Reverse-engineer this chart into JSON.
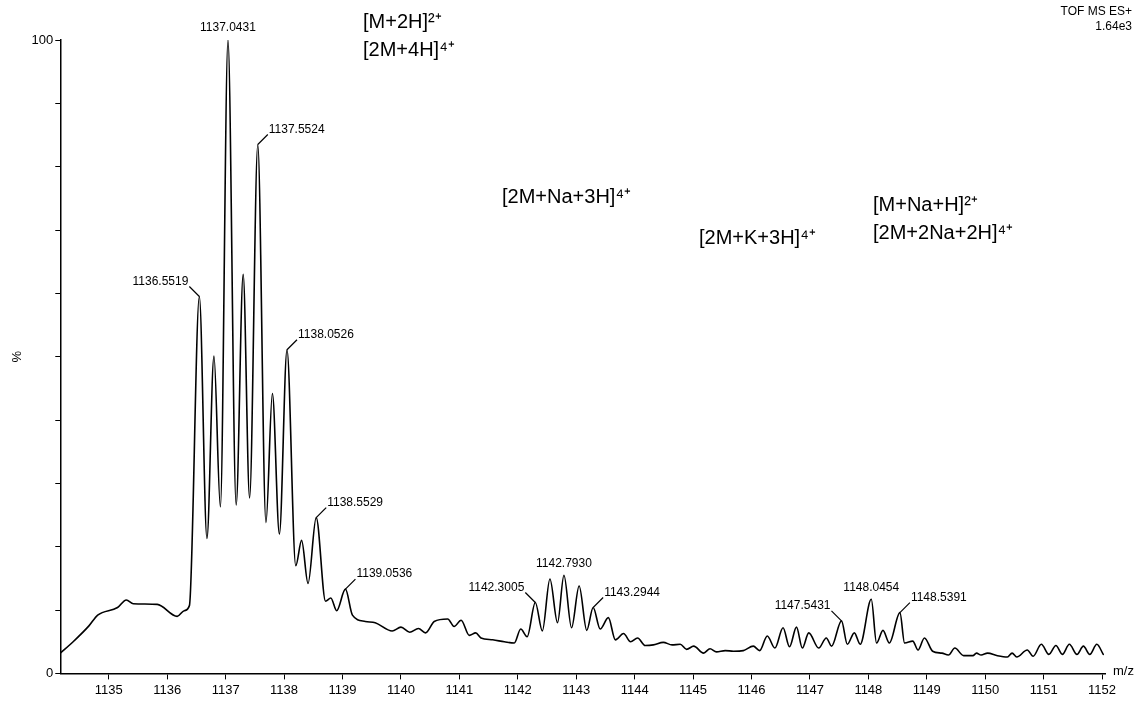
{
  "chart_data": {
    "type": "line",
    "xlabel": "m/z",
    "ylabel": "%",
    "xlim": [
      1134.17,
      1152.05
    ],
    "ylim": [
      0,
      100
    ],
    "xticks": [
      1135,
      1136,
      1137,
      1138,
      1139,
      1140,
      1141,
      1142,
      1143,
      1144,
      1145,
      1146,
      1147,
      1148,
      1149,
      1150,
      1151,
      1152
    ],
    "yticks": [
      0,
      {
        "value": 10,
        "label": null
      },
      {
        "value": 20,
        "label": null
      },
      {
        "value": 30,
        "label": null
      },
      {
        "value": 40,
        "label": null
      },
      {
        "value": 50,
        "label": null
      },
      {
        "value": 60,
        "label": null
      },
      {
        "value": 70,
        "label": null
      },
      {
        "value": 80,
        "label": null
      },
      {
        "value": 90,
        "label": null
      },
      100
    ],
    "grid": false,
    "legend": false,
    "marker": "none",
    "line_style": "solid",
    "series": [
      {
        "color": "#000000",
        "x": [
          1134.17,
          1134.39,
          1134.66,
          1134.81,
          1135.15,
          1135.3,
          1135.42,
          1135.83,
          1136.17,
          1136.29,
          1136.38,
          1136.55,
          1136.68,
          1136.8,
          1136.91,
          1137.04,
          1137.18,
          1137.3,
          1137.41,
          1137.55,
          1137.69,
          1137.8,
          1137.92,
          1138.05,
          1138.2,
          1138.3,
          1138.41,
          1138.55,
          1138.71,
          1138.8,
          1138.9,
          1139.05,
          1139.17,
          1139.39,
          1139.56,
          1139.85,
          1140.0,
          1140.15,
          1140.3,
          1140.42,
          1140.57,
          1140.8,
          1140.91,
          1141.03,
          1141.17,
          1141.28,
          1141.37,
          1141.57,
          1141.77,
          1141.94,
          1142.05,
          1142.16,
          1142.3,
          1142.42,
          1142.55,
          1142.68,
          1142.79,
          1142.92,
          1143.05,
          1143.18,
          1143.29,
          1143.41,
          1143.55,
          1143.67,
          1143.81,
          1143.93,
          1144.05,
          1144.18,
          1144.32,
          1144.49,
          1144.64,
          1144.78,
          1144.89,
          1145.01,
          1145.18,
          1145.29,
          1145.4,
          1145.55,
          1145.69,
          1145.86,
          1146.03,
          1146.14,
          1146.27,
          1146.4,
          1146.54,
          1146.65,
          1146.77,
          1146.87,
          1146.98,
          1147.15,
          1147.28,
          1147.37,
          1147.54,
          1147.64,
          1147.76,
          1147.86,
          1148.05,
          1148.14,
          1148.25,
          1148.36,
          1148.54,
          1148.62,
          1148.76,
          1148.85,
          1148.96,
          1149.1,
          1149.26,
          1149.37,
          1149.48,
          1149.63,
          1149.79,
          1149.85,
          1149.93,
          1150.04,
          1150.21,
          1150.38,
          1150.46,
          1150.54,
          1150.72,
          1150.82,
          1150.96,
          1151.09,
          1151.21,
          1151.32,
          1151.44,
          1151.57,
          1151.68,
          1151.79,
          1151.91,
          1152.02
        ],
        "values": [
          3.2,
          5.0,
          7.5,
          9.2,
          10.4,
          11.6,
          11.0,
          10.9,
          9.0,
          9.9,
          10.7,
          59.5,
          21.3,
          50.1,
          26.3,
          100,
          26.6,
          63.0,
          27.7,
          83.5,
          23.8,
          44.2,
          22.0,
          51.1,
          17.0,
          21.0,
          14.2,
          24.6,
          11.4,
          11.9,
          9.9,
          13.3,
          9.2,
          8.2,
          8.0,
          6.7,
          7.3,
          6.5,
          7.1,
          6.4,
          8.2,
          8.6,
          7.4,
          8.4,
          6.0,
          6.4,
          5.6,
          5.3,
          5.0,
          4.8,
          7.0,
          5.8,
          11.2,
          6.7,
          14.9,
          8.0,
          15.5,
          7.2,
          13.8,
          6.8,
          10.4,
          7.0,
          8.8,
          5.3,
          6.3,
          5.0,
          5.6,
          4.4,
          4.5,
          4.9,
          4.5,
          4.6,
          3.8,
          4.3,
          3.2,
          3.9,
          3.4,
          3.6,
          3.5,
          3.6,
          4.3,
          3.6,
          5.9,
          4.0,
          7.2,
          4.2,
          7.3,
          4.0,
          6.4,
          4.0,
          5.6,
          4.3,
          8.3,
          4.6,
          6.4,
          4.6,
          11.7,
          4.8,
          6.8,
          4.8,
          9.6,
          4.8,
          5.1,
          3.7,
          5.6,
          3.5,
          3.2,
          2.9,
          4.0,
          2.8,
          2.8,
          3.2,
          2.9,
          3.2,
          2.8,
          2.6,
          3.2,
          2.6,
          3.7,
          2.7,
          4.6,
          3.0,
          4.4,
          3.0,
          4.6,
          3.0,
          4.3,
          3.0,
          4.6,
          3.0
        ]
      }
    ],
    "annotations": [
      {
        "text": "1136.5519",
        "x": 1136.55,
        "y": 59.5
      },
      {
        "text": "1137.0431",
        "x": 1137.04,
        "y": 100
      },
      {
        "text": "1137.5524",
        "x": 1137.55,
        "y": 83.5
      },
      {
        "text": "1138.0526",
        "x": 1138.05,
        "y": 51.1
      },
      {
        "text": "1138.5529",
        "x": 1138.55,
        "y": 24.6
      },
      {
        "text": "1139.0536",
        "x": 1139.05,
        "y": 13.3
      },
      {
        "text": "1142.3005",
        "x": 1142.3,
        "y": 11.2
      },
      {
        "text": "1142.7930",
        "x": 1142.79,
        "y": 15.5
      },
      {
        "text": "1143.2944",
        "x": 1143.29,
        "y": 10.4
      },
      {
        "text": "1147.5431",
        "x": 1147.54,
        "y": 8.3
      },
      {
        "text": "1148.0454",
        "x": 1148.05,
        "y": 11.7
      },
      {
        "text": "1148.5391",
        "x": 1148.54,
        "y": 9.6
      },
      "[M+2H]²⁺",
      "[2M+4H]⁴⁺",
      "[2M+Na+3H]⁴⁺",
      "[2M+K+3H]⁴⁺",
      "[M+Na+H]²⁺",
      "[2M+2Na+2H]⁴⁺",
      "TOF MS ES+",
      "1.64e3"
    ]
  }
}
